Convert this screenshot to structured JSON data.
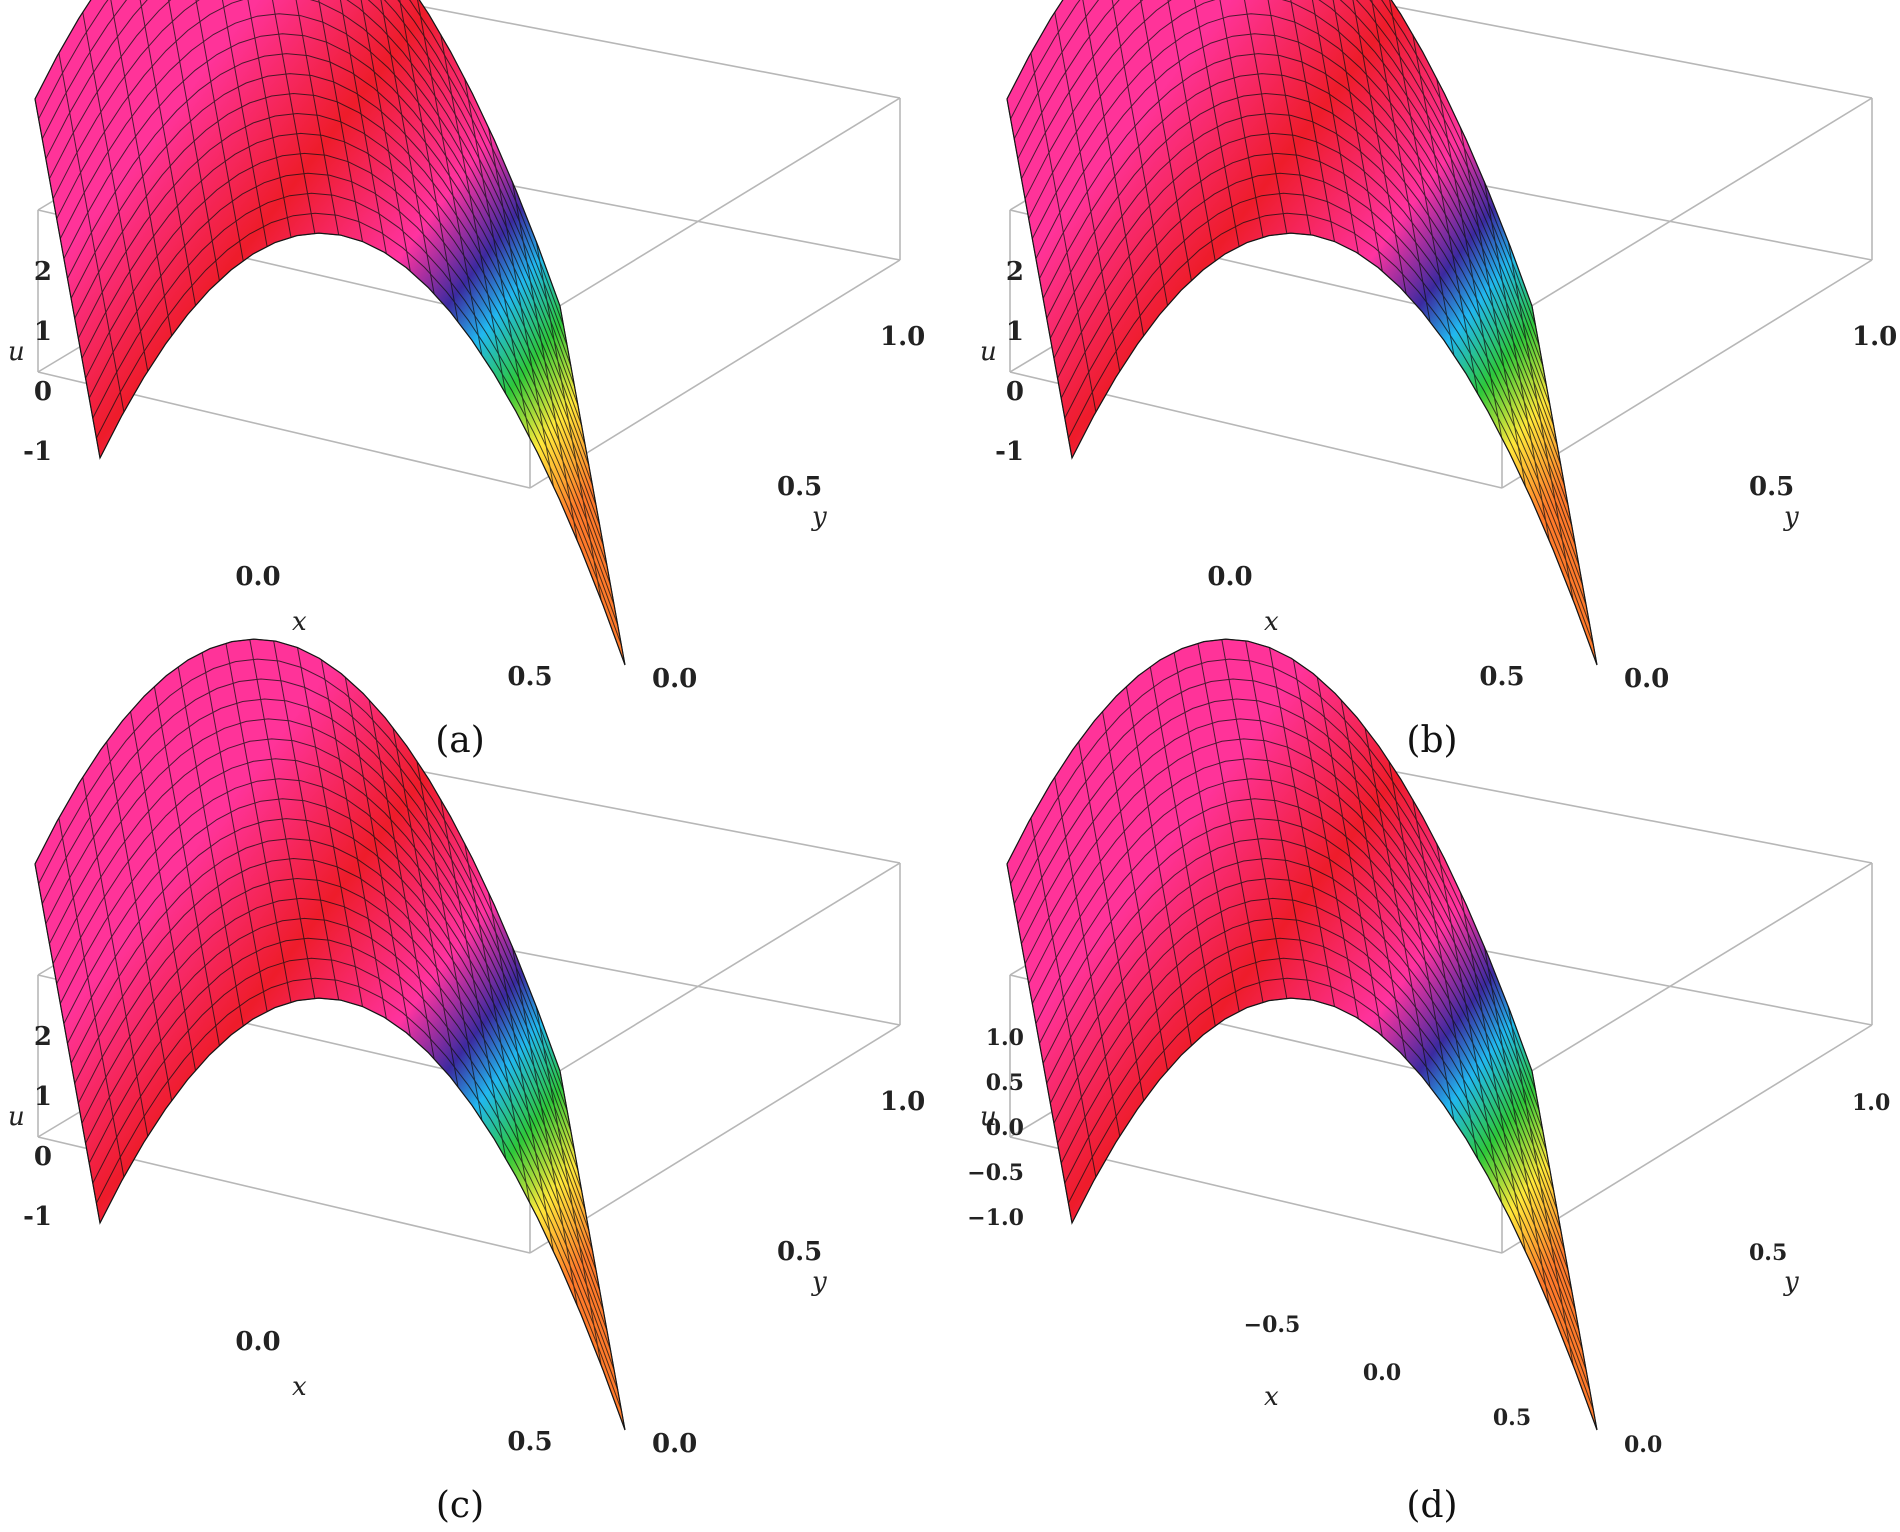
{
  "colors": {
    "box": "#b7b7b7",
    "mesh": "#111111",
    "bands": [
      "#ff7a2a",
      "#ffe83a",
      "#2ec83a",
      "#21b8ef",
      "#3b2aa0",
      "#ff33a0",
      "#ee1c2a"
    ]
  },
  "chart_data": [
    {
      "type": "surface",
      "caption": "(a)",
      "xlabel": "x",
      "ylabel": "y",
      "zlabel": "u",
      "x_ticks": [
        "0.0",
        "0.5"
      ],
      "y_ticks": [
        "0.0",
        "0.5",
        "1.0"
      ],
      "z_ticks": [
        "2",
        "1",
        "0",
        "-1"
      ],
      "xlim": [
        -1,
        1
      ],
      "ylim": [
        0,
        1
      ],
      "zlim": [
        -1.2,
        2.2
      ],
      "surface": "u = 2 - 3x^2 (approx., nearly independent of y)",
      "rows": [
        {
          "x": -1.0,
          "u": -1.0
        },
        {
          "x": -0.5,
          "u": 1.25
        },
        {
          "x": 0.0,
          "u": 2.0
        },
        {
          "x": 0.5,
          "u": 1.25
        },
        {
          "x": 1.0,
          "u": -1.0
        }
      ]
    },
    {
      "type": "surface",
      "caption": "(b)",
      "xlabel": "x",
      "ylabel": "y",
      "zlabel": "u",
      "x_ticks": [
        "0.0",
        "0.5"
      ],
      "y_ticks": [
        "0.0",
        "0.5",
        "1.0"
      ],
      "z_ticks": [
        "2",
        "1",
        "0",
        "-1"
      ],
      "xlim": [
        -1,
        1
      ],
      "ylim": [
        0,
        1
      ],
      "zlim": [
        -1.2,
        2.2
      ],
      "rows": [
        {
          "x": -1.0,
          "u": -1.0
        },
        {
          "x": -0.5,
          "u": 1.25
        },
        {
          "x": 0.0,
          "u": 2.0
        },
        {
          "x": 0.5,
          "u": 1.25
        },
        {
          "x": 1.0,
          "u": -1.0
        }
      ]
    },
    {
      "type": "surface",
      "caption": "(c)",
      "xlabel": "x",
      "ylabel": "y",
      "zlabel": "u",
      "x_ticks": [
        "0.0",
        "0.5"
      ],
      "y_ticks": [
        "0.0",
        "0.5",
        "1.0"
      ],
      "z_ticks": [
        "2",
        "1",
        "0",
        "-1"
      ],
      "xlim": [
        -1,
        1
      ],
      "ylim": [
        0,
        1
      ],
      "zlim": [
        -1.2,
        2.2
      ],
      "rows": [
        {
          "x": -1.0,
          "u": -1.0
        },
        {
          "x": -0.5,
          "u": 1.25
        },
        {
          "x": 0.0,
          "u": 2.0
        },
        {
          "x": 0.5,
          "u": 1.25
        },
        {
          "x": 1.0,
          "u": -1.0
        }
      ]
    },
    {
      "type": "surface",
      "caption": "(d)",
      "xlabel": "x",
      "ylabel": "y",
      "zlabel": "u",
      "x_ticks": [
        "−0.5",
        "0.0",
        "0.5"
      ],
      "y_ticks": [
        "0.0",
        "0.5",
        "1.0"
      ],
      "z_ticks": [
        "1.0",
        "0.5",
        "0.0",
        "−0.5",
        "−1.0"
      ],
      "xlim": [
        -1,
        1
      ],
      "ylim": [
        0,
        1
      ],
      "zlim": [
        -1.2,
        1.2
      ],
      "rows": [
        {
          "x": -1.0,
          "u": -1.0
        },
        {
          "x": -0.5,
          "u": 0.5
        },
        {
          "x": 0.0,
          "u": 1.0
        },
        {
          "x": 0.5,
          "u": 0.5
        },
        {
          "x": 1.0,
          "u": -1.0
        }
      ]
    }
  ]
}
